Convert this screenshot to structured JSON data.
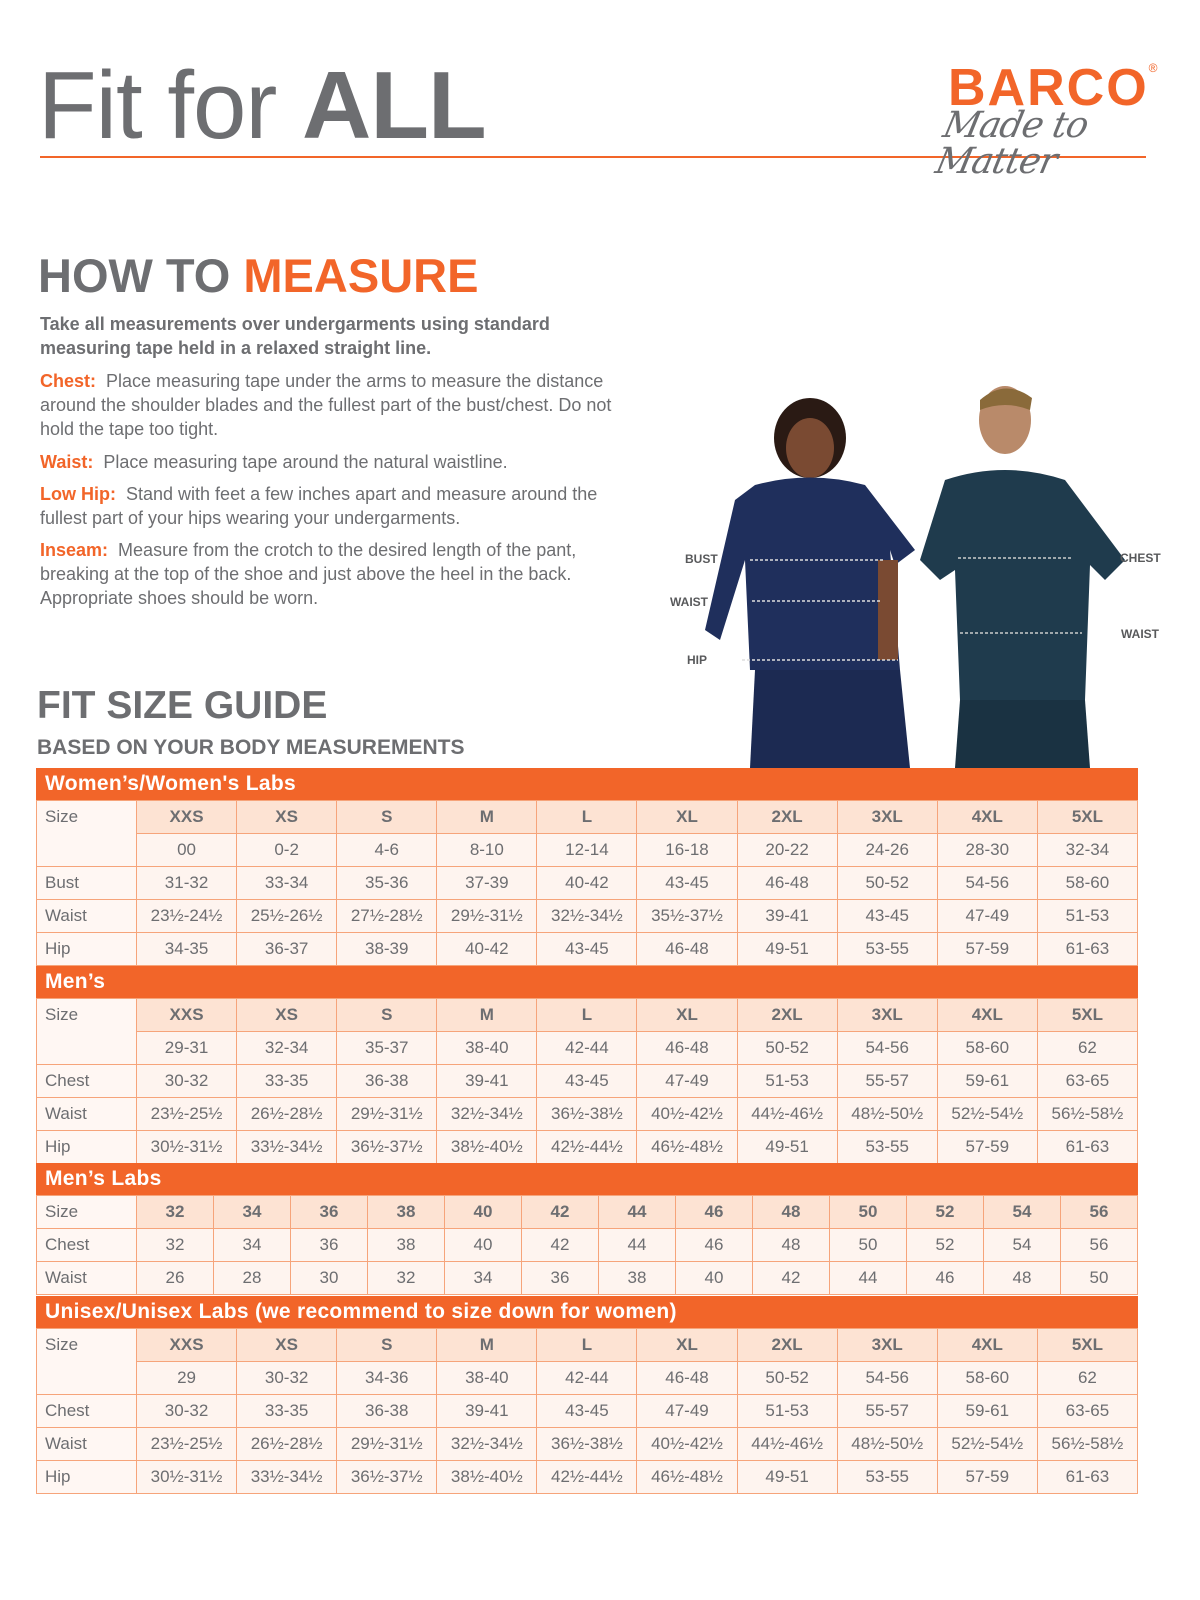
{
  "header": {
    "title_light": "Fit for ",
    "title_bold": "ALL",
    "brand": "BARCO",
    "brand_mark": "®",
    "tagline": "Made to Matter",
    "accent": "#f26529"
  },
  "how_to": {
    "title_a": "HOW TO ",
    "title_b": "MEASURE",
    "intro": "Take all measurements over undergarments using standard measuring tape held in a relaxed straight line.",
    "items": [
      {
        "label": "Chest:",
        "text": "Place measuring tape under the arms to measure the distance around the shoulder blades and the fullest part of the bust/chest. Do not hold the tape too tight."
      },
      {
        "label": "Waist:",
        "text": "Place measuring tape around the natural waistline."
      },
      {
        "label": "Low Hip:",
        "text": "Stand with feet a few inches apart and measure around the fullest part of your hips wearing your undergarments."
      },
      {
        "label": "Inseam:",
        "text": "Measure from the crotch to the desired length of the pant, breaking at the top of the shoe and just above the heel in the back. Appropriate shoes should be worn."
      }
    ]
  },
  "figure_labels": {
    "bust": "BUST",
    "waist_w": "WAIST",
    "hip": "HIP",
    "chest": "CHEST",
    "waist_m": "WAIST"
  },
  "guide": {
    "title": "FIT SIZE GUIDE",
    "subtitle": "BASED ON YOUR BODY MEASUREMENTS"
  },
  "tables": [
    {
      "title": "Women’s/Women's Labs",
      "size_label": "Size",
      "sizes": [
        "XXS",
        "XS",
        "S",
        "M",
        "L",
        "XL",
        "2XL",
        "3XL",
        "4XL",
        "5XL"
      ],
      "numeric": [
        "00",
        "0-2",
        "4-6",
        "8-10",
        "12-14",
        "16-18",
        "20-22",
        "24-26",
        "28-30",
        "32-34"
      ],
      "rows": [
        {
          "label": "Bust",
          "values": [
            "31-32",
            "33-34",
            "35-36",
            "37-39",
            "40-42",
            "43-45",
            "46-48",
            "50-52",
            "54-56",
            "58-60"
          ]
        },
        {
          "label": "Waist",
          "values": [
            "23½-24½",
            "25½-26½",
            "27½-28½",
            "29½-31½",
            "32½-34½",
            "35½-37½",
            "39-41",
            "43-45",
            "47-49",
            "51-53"
          ]
        },
        {
          "label": "Hip",
          "values": [
            "34-35",
            "36-37",
            "38-39",
            "40-42",
            "43-45",
            "46-48",
            "49-51",
            "53-55",
            "57-59",
            "61-63"
          ]
        }
      ]
    },
    {
      "title": "Men’s",
      "size_label": "Size",
      "sizes": [
        "XXS",
        "XS",
        "S",
        "M",
        "L",
        "XL",
        "2XL",
        "3XL",
        "4XL",
        "5XL"
      ],
      "numeric": [
        "29-31",
        "32-34",
        "35-37",
        "38-40",
        "42-44",
        "46-48",
        "50-52",
        "54-56",
        "58-60",
        "62"
      ],
      "rows": [
        {
          "label": "Chest",
          "values": [
            "30-32",
            "33-35",
            "36-38",
            "39-41",
            "43-45",
            "47-49",
            "51-53",
            "55-57",
            "59-61",
            "63-65"
          ]
        },
        {
          "label": "Waist",
          "values": [
            "23½-25½",
            "26½-28½",
            "29½-31½",
            "32½-34½",
            "36½-38½",
            "40½-42½",
            "44½-46½",
            "48½-50½",
            "52½-54½",
            "56½-58½"
          ]
        },
        {
          "label": "Hip",
          "values": [
            "30½-31½",
            "33½-34½",
            "36½-37½",
            "38½-40½",
            "42½-44½",
            "46½-48½",
            "49-51",
            "53-55",
            "57-59",
            "61-63"
          ]
        }
      ]
    },
    {
      "title": "Men’s Labs",
      "size_label": "Size",
      "sizes": [
        "32",
        "34",
        "36",
        "38",
        "40",
        "42",
        "44",
        "46",
        "48",
        "50",
        "52",
        "54",
        "56"
      ],
      "rows": [
        {
          "label": "Chest",
          "values": [
            "32",
            "34",
            "36",
            "38",
            "40",
            "42",
            "44",
            "46",
            "48",
            "50",
            "52",
            "54",
            "56"
          ]
        },
        {
          "label": "Waist",
          "values": [
            "26",
            "28",
            "30",
            "32",
            "34",
            "36",
            "38",
            "40",
            "42",
            "44",
            "46",
            "48",
            "50"
          ]
        }
      ]
    },
    {
      "title": "Unisex/Unisex Labs (we recommend to size down for women)",
      "size_label": "Size",
      "sizes": [
        "XXS",
        "XS",
        "S",
        "M",
        "L",
        "XL",
        "2XL",
        "3XL",
        "4XL",
        "5XL"
      ],
      "numeric": [
        "29",
        "30-32",
        "34-36",
        "38-40",
        "42-44",
        "46-48",
        "50-52",
        "54-56",
        "58-60",
        "62"
      ],
      "rows": [
        {
          "label": "Chest",
          "values": [
            "30-32",
            "33-35",
            "36-38",
            "39-41",
            "43-45",
            "47-49",
            "51-53",
            "55-57",
            "59-61",
            "63-65"
          ]
        },
        {
          "label": "Waist",
          "values": [
            "23½-25½",
            "26½-28½",
            "29½-31½",
            "32½-34½",
            "36½-38½",
            "40½-42½",
            "44½-46½",
            "48½-50½",
            "52½-54½",
            "56½-58½"
          ]
        },
        {
          "label": "Hip",
          "values": [
            "30½-31½",
            "33½-34½",
            "36½-37½",
            "38½-40½",
            "42½-44½",
            "46½-48½",
            "49-51",
            "53-55",
            "57-59",
            "61-63"
          ]
        }
      ]
    }
  ]
}
